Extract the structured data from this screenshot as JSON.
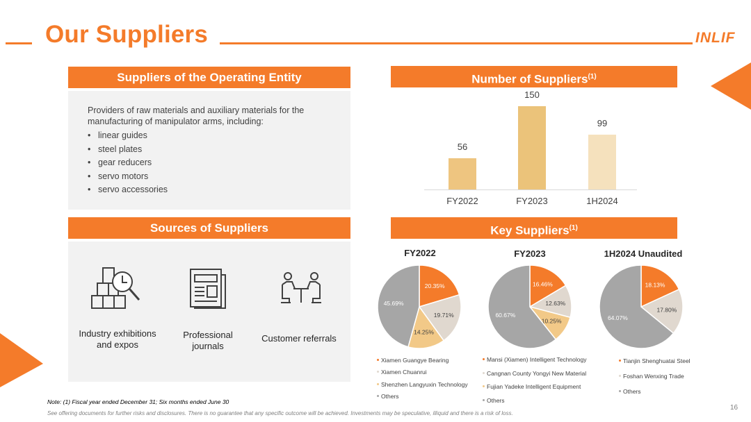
{
  "header": {
    "title": "Our Suppliers",
    "logo_text": "INLIF",
    "accent_color": "#f47b2a"
  },
  "operating_entity": {
    "banner": "Suppliers of the Operating Entity",
    "intro": "Providers of raw materials and auxiliary materials for the manufacturing of manipulator arms, including:",
    "items": [
      "linear guides",
      "steel plates",
      "gear reducers",
      "servo motors",
      "servo accessories"
    ]
  },
  "sources": {
    "banner": "Sources of Suppliers",
    "items": [
      {
        "label": "Industry exhibitions and expos",
        "icon": "exhibition-boxes-icon"
      },
      {
        "label": "Professional journals",
        "icon": "newspaper-icon"
      },
      {
        "label": "Customer referrals",
        "icon": "meeting-people-icon"
      }
    ]
  },
  "number_of_suppliers": {
    "banner": "Number of Suppliers",
    "banner_sup": "(1)"
  },
  "key_suppliers": {
    "banner": "Key Suppliers",
    "banner_sup": "(1)"
  },
  "chart_data": [
    {
      "type": "bar",
      "categories": [
        "FY2022",
        "FY2023",
        "1H2024"
      ],
      "values": [
        56,
        150,
        99
      ],
      "colors": [
        "#eec580",
        "#ebc37a",
        "#f5e1bd"
      ],
      "title": "Number of Suppliers(1)",
      "ylim": [
        0,
        150
      ]
    },
    {
      "type": "pie",
      "title": "FY2022",
      "labels": [
        "Xiamen Guangye Bearing",
        "Xiamen Chuanrui",
        "Shenzhen Langyuxin Technology",
        "Others"
      ],
      "values": [
        20.35,
        19.71,
        14.25,
        45.69
      ],
      "value_labels": [
        "20.35%",
        "19.71%",
        "14.25%",
        "45.69%"
      ],
      "colors": [
        "#f47b2a",
        "#e0d8cf",
        "#f2c988",
        "#a6a6a6"
      ]
    },
    {
      "type": "pie",
      "title": "FY2023",
      "labels": [
        "Mansi (Xiamen) Intelligent Technology",
        "Cangnan County Yongyi New Material",
        "Fujian Yadeke Intelligent Equipment",
        "Others"
      ],
      "values": [
        16.46,
        12.63,
        10.25,
        60.67
      ],
      "value_labels": [
        "16.46%",
        "12.63%",
        "10.25%",
        "60.67%"
      ],
      "colors": [
        "#f47b2a",
        "#e0d8cf",
        "#f2c988",
        "#a6a6a6"
      ]
    },
    {
      "type": "pie",
      "title": "1H2024 Unaudited",
      "labels": [
        "Tianjin Shenghuatai Steel",
        "Foshan Wenxing Trade",
        "Others"
      ],
      "values": [
        18.13,
        17.8,
        64.07
      ],
      "value_labels": [
        "18.13%",
        "17.80%",
        "64.07%"
      ],
      "colors": [
        "#f47b2a",
        "#e0d8cf",
        "#a6a6a6"
      ]
    }
  ],
  "footer": {
    "note": "Note: (1) Fiscal year ended December 31; Six months ended June 30",
    "disclaimer": "See offering documents for further risks and disclosures. There is no guarantee that any specific outcome will be achieved. Investments may be speculative, illiquid and there is a risk of loss.",
    "page_number": "16"
  }
}
